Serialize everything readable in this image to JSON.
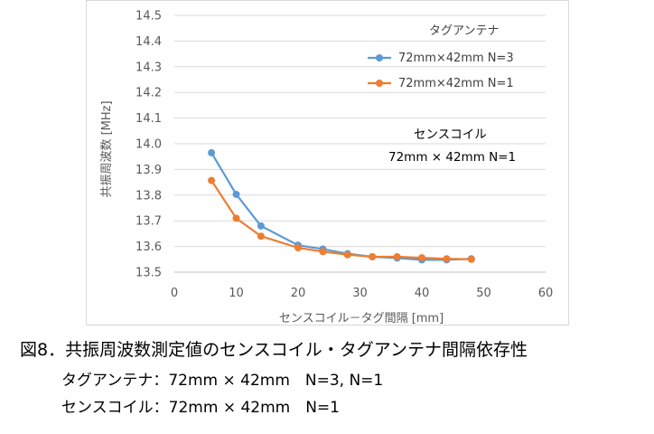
{
  "chart_data": {
    "type": "line",
    "xlabel": "センスコイル－タグ間隔 [mm]",
    "ylabel": "共振周波数 [MHz]",
    "xlim": [
      0,
      60
    ],
    "ylim": [
      13.5,
      14.5
    ],
    "xticks": [
      "0",
      "10",
      "20",
      "30",
      "40",
      "50",
      "60"
    ],
    "yticks": [
      "13.5",
      "13.6",
      "13.7",
      "13.8",
      "13.9",
      "14.0",
      "14.1",
      "14.2",
      "14.3",
      "14.4",
      "14.5"
    ],
    "grid": "horizontal",
    "legend_title": "タグアンテナ",
    "legend_position": "top-right",
    "series": [
      {
        "name": "72mm×42mm N=3",
        "color": "#5b9bd5",
        "x": [
          6,
          10,
          14,
          20,
          24,
          28,
          32,
          36,
          40,
          44,
          48
        ],
        "y": [
          13.965,
          13.803,
          13.68,
          13.605,
          13.59,
          13.572,
          13.56,
          13.555,
          13.548,
          13.548,
          13.552
        ]
      },
      {
        "name": "72mm×42mm N=1",
        "color": "#ed7d31",
        "x": [
          6,
          10,
          14,
          20,
          24,
          28,
          32,
          36,
          40,
          44,
          48
        ],
        "y": [
          13.857,
          13.71,
          13.64,
          13.595,
          13.58,
          13.568,
          13.56,
          13.56,
          13.556,
          13.552,
          13.55
        ]
      }
    ],
    "annotation": {
      "line1": "センスコイル",
      "line2": "72mm × 42mm N=1"
    }
  },
  "caption": {
    "line1": "図8．共振周波数測定値のセンスコイル・タグアンテナ間隔依存性",
    "line2": "タグアンテナ：72mm × 42mm　N=3, N=1",
    "line3": "センスコイル：72mm × 42mm　N=1"
  }
}
